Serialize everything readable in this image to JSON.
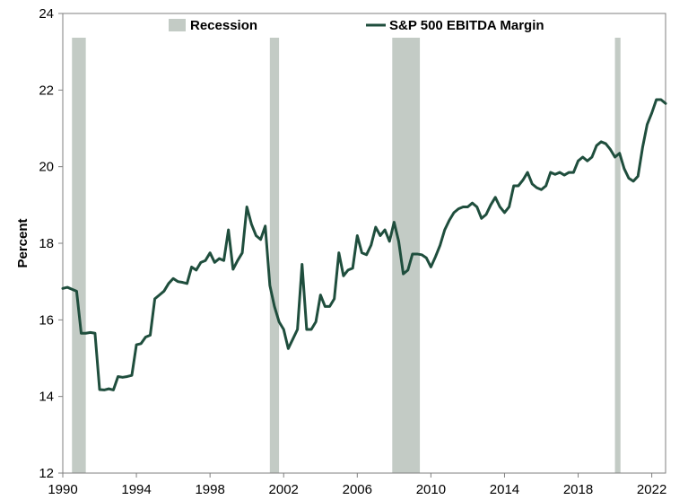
{
  "chart_data": {
    "type": "line",
    "title": "",
    "xlabel": "",
    "ylabel": "Percent",
    "xlim": [
      1990,
      2022.75
    ],
    "ylim": [
      12,
      24
    ],
    "x_ticks": [
      1990,
      1994,
      1998,
      2002,
      2006,
      2010,
      2014,
      2018,
      2022
    ],
    "y_ticks": [
      12,
      14,
      16,
      18,
      20,
      22,
      24
    ],
    "grid": false,
    "legend_position": "top",
    "colors": {
      "line": "#1f4e3d",
      "recession": "#c3cbc5"
    },
    "legend": [
      {
        "label": "Recession",
        "style": "band"
      },
      {
        "label": "S&P 500 EBITDA Margin",
        "style": "line"
      }
    ],
    "recessions": [
      {
        "start": 1990.5,
        "end": 1991.25
      },
      {
        "start": 2001.25,
        "end": 2001.75
      },
      {
        "start": 2007.9,
        "end": 2009.4
      },
      {
        "start": 2020.0,
        "end": 2020.3
      }
    ],
    "series": [
      {
        "name": "S&P 500 EBITDA Margin",
        "points": [
          [
            1990.0,
            16.82
          ],
          [
            1990.25,
            16.85
          ],
          [
            1990.5,
            16.8
          ],
          [
            1990.75,
            16.75
          ],
          [
            1991.0,
            15.65
          ],
          [
            1991.25,
            15.65
          ],
          [
            1991.5,
            15.67
          ],
          [
            1991.75,
            15.65
          ],
          [
            1992.0,
            14.18
          ],
          [
            1992.25,
            14.17
          ],
          [
            1992.5,
            14.2
          ],
          [
            1992.75,
            14.17
          ],
          [
            1993.0,
            14.52
          ],
          [
            1993.25,
            14.5
          ],
          [
            1993.5,
            14.52
          ],
          [
            1993.75,
            14.55
          ],
          [
            1994.0,
            15.35
          ],
          [
            1994.25,
            15.38
          ],
          [
            1994.5,
            15.55
          ],
          [
            1994.75,
            15.6
          ],
          [
            1995.0,
            16.55
          ],
          [
            1995.25,
            16.65
          ],
          [
            1995.5,
            16.75
          ],
          [
            1995.75,
            16.95
          ],
          [
            1996.0,
            17.08
          ],
          [
            1996.25,
            17.0
          ],
          [
            1996.5,
            16.98
          ],
          [
            1996.75,
            16.95
          ],
          [
            1997.0,
            17.38
          ],
          [
            1997.25,
            17.3
          ],
          [
            1997.5,
            17.5
          ],
          [
            1997.75,
            17.55
          ],
          [
            1998.0,
            17.75
          ],
          [
            1998.25,
            17.5
          ],
          [
            1998.5,
            17.6
          ],
          [
            1998.75,
            17.55
          ],
          [
            1999.0,
            18.35
          ],
          [
            1999.25,
            17.32
          ],
          [
            1999.5,
            17.55
          ],
          [
            1999.75,
            17.75
          ],
          [
            2000.0,
            18.95
          ],
          [
            2000.25,
            18.5
          ],
          [
            2000.5,
            18.2
          ],
          [
            2000.75,
            18.1
          ],
          [
            2001.0,
            18.45
          ],
          [
            2001.25,
            16.9
          ],
          [
            2001.5,
            16.35
          ],
          [
            2001.75,
            15.95
          ],
          [
            2002.0,
            15.75
          ],
          [
            2002.25,
            15.25
          ],
          [
            2002.5,
            15.5
          ],
          [
            2002.75,
            15.75
          ],
          [
            2003.0,
            17.45
          ],
          [
            2003.25,
            15.75
          ],
          [
            2003.5,
            15.75
          ],
          [
            2003.75,
            15.95
          ],
          [
            2004.0,
            16.65
          ],
          [
            2004.25,
            16.35
          ],
          [
            2004.5,
            16.35
          ],
          [
            2004.75,
            16.55
          ],
          [
            2005.0,
            17.75
          ],
          [
            2005.25,
            17.15
          ],
          [
            2005.5,
            17.3
          ],
          [
            2005.75,
            17.35
          ],
          [
            2006.0,
            18.2
          ],
          [
            2006.25,
            17.75
          ],
          [
            2006.5,
            17.7
          ],
          [
            2006.75,
            17.95
          ],
          [
            2007.0,
            18.42
          ],
          [
            2007.25,
            18.2
          ],
          [
            2007.5,
            18.35
          ],
          [
            2007.75,
            18.05
          ],
          [
            2008.0,
            18.55
          ],
          [
            2008.25,
            18.05
          ],
          [
            2008.5,
            17.2
          ],
          [
            2008.75,
            17.3
          ],
          [
            2009.0,
            17.72
          ],
          [
            2009.25,
            17.72
          ],
          [
            2009.5,
            17.7
          ],
          [
            2009.75,
            17.62
          ],
          [
            2010.0,
            17.38
          ],
          [
            2010.25,
            17.65
          ],
          [
            2010.5,
            17.95
          ],
          [
            2010.75,
            18.35
          ],
          [
            2011.0,
            18.6
          ],
          [
            2011.25,
            18.8
          ],
          [
            2011.5,
            18.9
          ],
          [
            2011.75,
            18.95
          ],
          [
            2012.0,
            18.95
          ],
          [
            2012.25,
            19.05
          ],
          [
            2012.5,
            18.95
          ],
          [
            2012.75,
            18.65
          ],
          [
            2013.0,
            18.75
          ],
          [
            2013.25,
            19.0
          ],
          [
            2013.5,
            19.2
          ],
          [
            2013.75,
            18.95
          ],
          [
            2014.0,
            18.8
          ],
          [
            2014.25,
            18.95
          ],
          [
            2014.5,
            19.5
          ],
          [
            2014.75,
            19.5
          ],
          [
            2015.0,
            19.65
          ],
          [
            2015.25,
            19.85
          ],
          [
            2015.5,
            19.55
          ],
          [
            2015.75,
            19.45
          ],
          [
            2016.0,
            19.4
          ],
          [
            2016.25,
            19.5
          ],
          [
            2016.5,
            19.85
          ],
          [
            2016.75,
            19.8
          ],
          [
            2017.0,
            19.85
          ],
          [
            2017.25,
            19.78
          ],
          [
            2017.5,
            19.85
          ],
          [
            2017.75,
            19.85
          ],
          [
            2018.0,
            20.15
          ],
          [
            2018.25,
            20.25
          ],
          [
            2018.5,
            20.15
          ],
          [
            2018.75,
            20.25
          ],
          [
            2019.0,
            20.55
          ],
          [
            2019.25,
            20.65
          ],
          [
            2019.5,
            20.6
          ],
          [
            2019.75,
            20.45
          ],
          [
            2020.0,
            20.25
          ],
          [
            2020.25,
            20.35
          ],
          [
            2020.5,
            19.95
          ],
          [
            2020.75,
            19.7
          ],
          [
            2021.0,
            19.62
          ],
          [
            2021.25,
            19.75
          ],
          [
            2021.5,
            20.5
          ],
          [
            2021.75,
            21.1
          ],
          [
            2022.0,
            21.4
          ],
          [
            2022.25,
            21.75
          ],
          [
            2022.5,
            21.75
          ],
          [
            2022.75,
            21.65
          ]
        ]
      }
    ]
  }
}
